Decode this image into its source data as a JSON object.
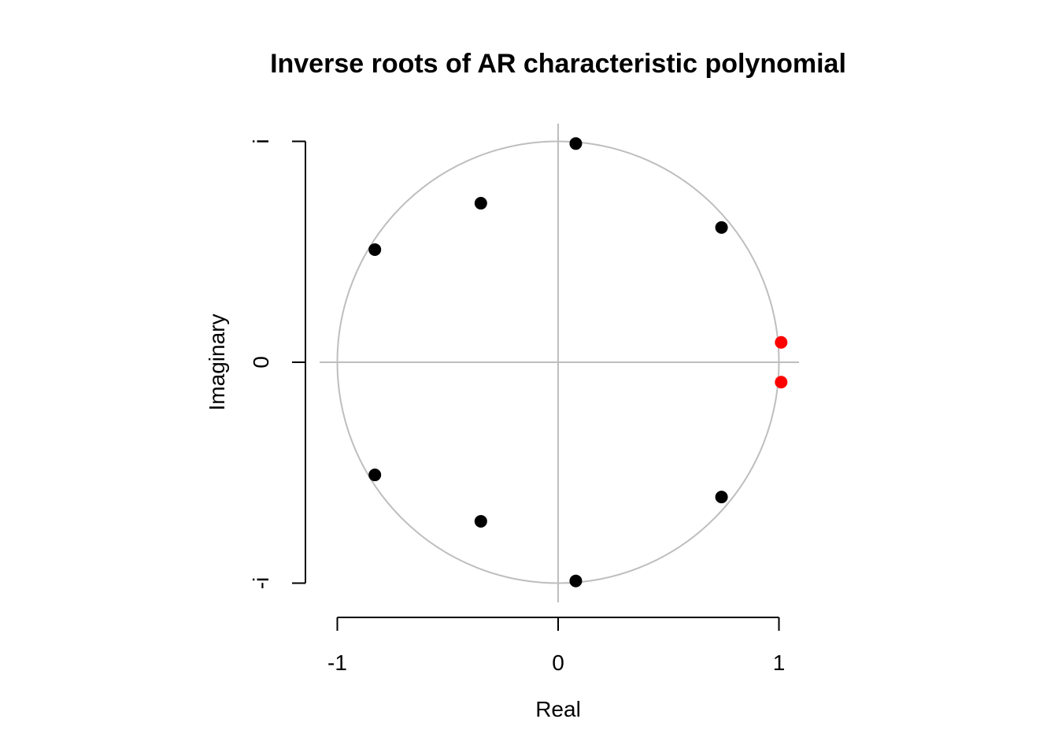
{
  "chart_data": {
    "type": "scatter",
    "title": "Inverse roots of AR characteristic polynomial",
    "xlabel": "Real",
    "ylabel": "Imaginary",
    "xlim": [
      -1,
      1
    ],
    "ylim": [
      -1,
      1
    ],
    "x_ticks": [
      {
        "value": -1,
        "label": "-1"
      },
      {
        "value": 0,
        "label": "0"
      },
      {
        "value": 1,
        "label": "1"
      }
    ],
    "y_ticks": [
      {
        "value": -1,
        "label": "-i"
      },
      {
        "value": 0,
        "label": "0"
      },
      {
        "value": 1,
        "label": "i"
      }
    ],
    "unit_circle": true,
    "reference_lines": {
      "x": 0,
      "y": 0
    },
    "colors": {
      "stationary_root": "#000000",
      "unit_root": "#ff0000",
      "reference": "#bebebe"
    },
    "points": [
      {
        "re": 0.08,
        "im": 0.99,
        "color": "#000000"
      },
      {
        "re": 0.08,
        "im": -0.99,
        "color": "#000000"
      },
      {
        "re": -0.35,
        "im": 0.72,
        "color": "#000000"
      },
      {
        "re": -0.35,
        "im": -0.72,
        "color": "#000000"
      },
      {
        "re": -0.83,
        "im": 0.51,
        "color": "#000000"
      },
      {
        "re": -0.83,
        "im": -0.51,
        "color": "#000000"
      },
      {
        "re": 0.74,
        "im": 0.61,
        "color": "#000000"
      },
      {
        "re": 0.74,
        "im": -0.61,
        "color": "#000000"
      },
      {
        "re": 1.01,
        "im": 0.09,
        "color": "#ff0000"
      },
      {
        "re": 1.01,
        "im": -0.09,
        "color": "#ff0000"
      }
    ]
  }
}
